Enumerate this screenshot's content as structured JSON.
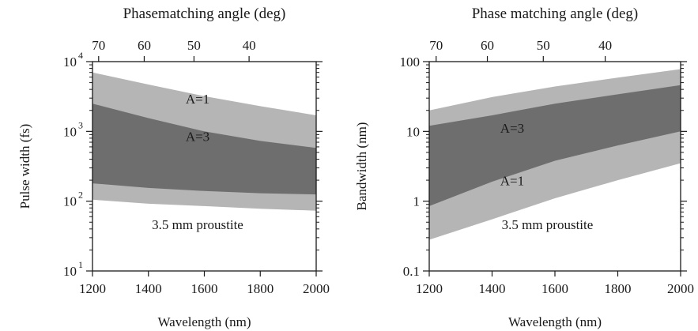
{
  "colors": {
    "outer_band": "#b5b5b5",
    "inner_band": "#6e6e6e",
    "axes": "#1a1a1a"
  },
  "chart_data": [
    {
      "type": "area",
      "ylabel": "Pulse width (fs)",
      "xlabel": "Wavelength (nm)",
      "top_label": "Phasematching angle (deg)",
      "yscale": "log",
      "xlim": [
        1200,
        2000
      ],
      "ylim": [
        10,
        10000
      ],
      "x_ticks": [
        1200,
        1400,
        1600,
        1800,
        2000
      ],
      "x_tick_labels": [
        "1200",
        "1400",
        "1600",
        "1800",
        "2000"
      ],
      "y_ticks": [
        10,
        100,
        1000,
        10000
      ],
      "y_tick_labels": [
        {
          "base": "10",
          "exp": "1"
        },
        {
          "base": "10",
          "exp": "2"
        },
        {
          "base": "10",
          "exp": "3"
        },
        {
          "base": "10",
          "exp": "4"
        }
      ],
      "top_ticks": [
        {
          "label": "70",
          "wavelength": 1222
        },
        {
          "label": "60",
          "wavelength": 1385
        },
        {
          "label": "50",
          "wavelength": 1563
        },
        {
          "label": "40",
          "wavelength": 1760
        }
      ],
      "annotation": "3.5 mm proustite",
      "series": [
        {
          "name": "A=1",
          "x": [
            1200,
            1400,
            1600,
            1800,
            2000
          ],
          "upper": [
            7000,
            4700,
            3200,
            2300,
            1700
          ],
          "lower": [
            105,
            92,
            85,
            78,
            73
          ]
        },
        {
          "name": "A=3",
          "x": [
            1200,
            1400,
            1600,
            1800,
            2000
          ],
          "upper": [
            2500,
            1550,
            1000,
            730,
            580
          ],
          "lower": [
            180,
            155,
            140,
            130,
            125
          ]
        }
      ]
    },
    {
      "type": "area",
      "ylabel": "Bandwidth (nm)",
      "xlabel": "Wavelength (nm)",
      "top_label": "Phase matching angle (deg)",
      "yscale": "log",
      "xlim": [
        1200,
        2000
      ],
      "ylim": [
        0.1,
        100
      ],
      "x_ticks": [
        1200,
        1400,
        1600,
        1800,
        2000
      ],
      "x_tick_labels": [
        "1200",
        "1400",
        "1600",
        "1800",
        "2000"
      ],
      "y_ticks": [
        0.1,
        1,
        10,
        100
      ],
      "y_tick_labels": [
        "0.1",
        "1",
        "10",
        "100"
      ],
      "top_ticks": [
        {
          "label": "70",
          "wavelength": 1222
        },
        {
          "label": "60",
          "wavelength": 1385
        },
        {
          "label": "50",
          "wavelength": 1563
        },
        {
          "label": "40",
          "wavelength": 1760
        }
      ],
      "annotation": "3.5 mm proustite",
      "series": [
        {
          "name": "A=1",
          "x": [
            1200,
            1400,
            1600,
            1800,
            2000
          ],
          "upper": [
            20,
            31,
            44,
            59,
            78
          ],
          "lower": [
            0.28,
            0.55,
            1.1,
            2.0,
            3.5
          ]
        },
        {
          "name": "A=3",
          "x": [
            1200,
            1400,
            1600,
            1800,
            2000
          ],
          "upper": [
            12,
            17,
            25,
            34,
            46
          ],
          "lower": [
            0.85,
            1.9,
            3.8,
            6.3,
            10
          ]
        }
      ]
    }
  ]
}
